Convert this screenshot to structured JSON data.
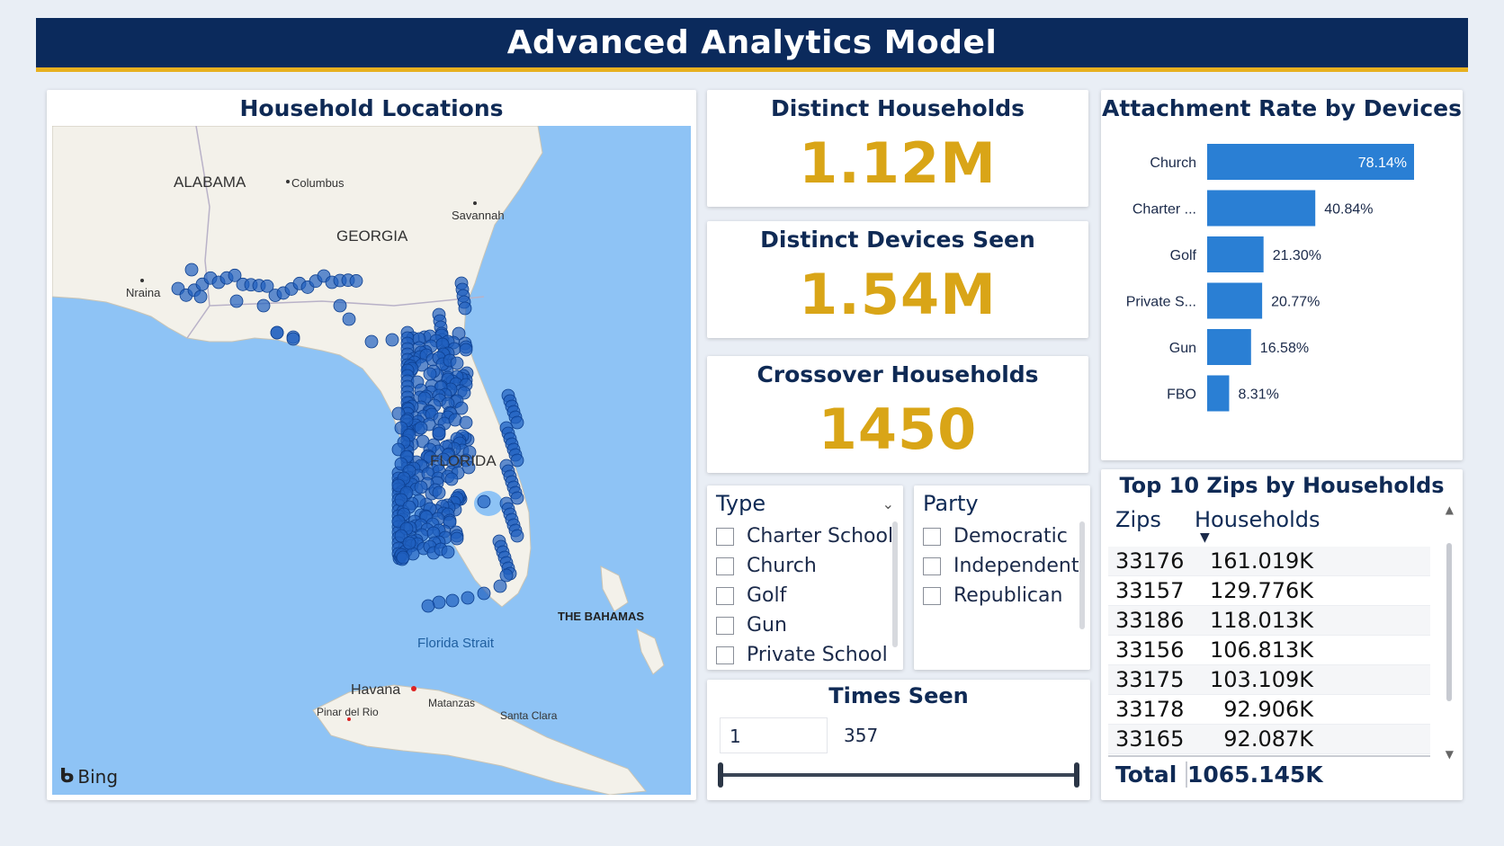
{
  "header": {
    "title": "Advanced Analytics Model"
  },
  "map": {
    "title": "Household Locations",
    "labels": {
      "alabama": "ALABAMA",
      "columbus": "Columbus",
      "georgia": "GEORGIA",
      "savannah": "Savannah",
      "ninaa": "Nraina",
      "florida": "FLORIDA",
      "bahamas": "THE BAHAMAS",
      "strait": "Florida Strait",
      "havana": "Havana",
      "matanzas": "Matanzas",
      "pinar": "Pinar del Rio",
      "santa_clara": "Santa Clara"
    },
    "provider": "Bing",
    "colors": {
      "water": "#8ec3f5",
      "land": "#f3f1ea",
      "points": "#1f5fbf"
    }
  },
  "kpis": [
    {
      "title": "Distinct Households",
      "value": "1.12M"
    },
    {
      "title": "Distinct Devices Seen",
      "value": "1.54M"
    },
    {
      "title": "Crossover Households",
      "value": "1450"
    }
  ],
  "chart_data": {
    "type": "bar",
    "orientation": "horizontal",
    "title": "Attachment Rate by Devices",
    "categories": [
      "Church",
      "Charter ...",
      "Golf",
      "Private S...",
      "Gun",
      "FBO"
    ],
    "values": [
      78.14,
      40.84,
      21.3,
      20.77,
      16.58,
      8.31
    ],
    "value_labels": [
      "78.14%",
      "40.84%",
      "21.30%",
      "20.77%",
      "16.58%",
      "8.31%"
    ],
    "xlim": [
      0,
      80
    ],
    "bar_color": "#2a7fd4"
  },
  "slicers": {
    "type": {
      "title": "Type",
      "options": [
        "Charter School",
        "Church",
        "Golf",
        "Gun",
        "Private School"
      ]
    },
    "party": {
      "title": "Party",
      "options": [
        "Democratic",
        "Independent",
        "Republican"
      ]
    }
  },
  "times_seen": {
    "title": "Times Seen",
    "min": "1",
    "max": "357"
  },
  "top_zips": {
    "title": "Top 10 Zips by Households",
    "columns": [
      "Zips",
      "Households"
    ],
    "rows": [
      {
        "zip": "33176",
        "households": "161.019K"
      },
      {
        "zip": "33157",
        "households": "129.776K"
      },
      {
        "zip": "33186",
        "households": "118.013K"
      },
      {
        "zip": "33156",
        "households": "106.813K"
      },
      {
        "zip": "33175",
        "households": "103.109K"
      },
      {
        "zip": "33178",
        "households": "92.906K"
      },
      {
        "zip": "33165",
        "households": "92.087K"
      }
    ],
    "total_label": "Total",
    "total_value": "1065.145K"
  }
}
